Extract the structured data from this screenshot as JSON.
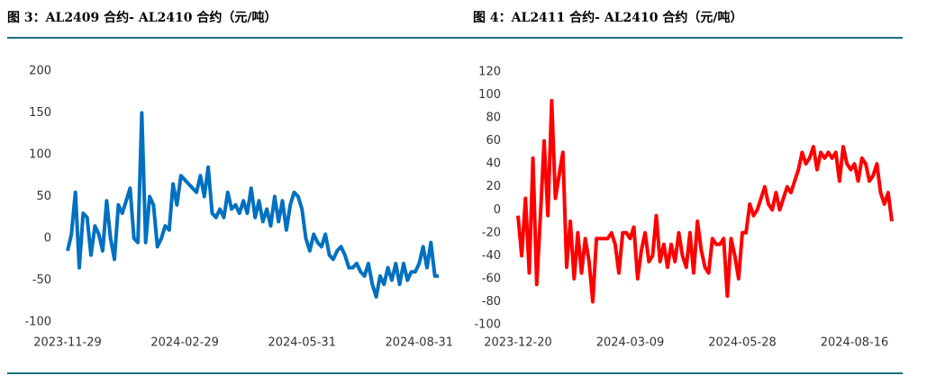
{
  "chart_data": [
    {
      "type": "line",
      "title": "图 3：AL2409 合约- AL2410 合约（元/吨）",
      "categories": [
        "2023-11-29",
        null,
        null,
        null,
        null,
        null,
        null,
        null,
        null,
        null,
        null,
        null,
        null,
        null,
        null,
        null,
        null,
        null,
        null,
        null,
        null,
        null,
        null,
        null,
        null,
        null,
        null,
        null,
        null,
        null,
        "2024-02-29",
        null,
        null,
        null,
        null,
        null,
        null,
        null,
        null,
        null,
        null,
        null,
        null,
        null,
        null,
        null,
        null,
        null,
        null,
        null,
        null,
        null,
        null,
        null,
        null,
        null,
        null,
        null,
        null,
        null,
        "2024-05-31",
        null,
        null,
        null,
        null,
        null,
        null,
        null,
        null,
        null,
        null,
        null,
        null,
        null,
        null,
        null,
        null,
        null,
        null,
        null,
        null,
        null,
        null,
        null,
        null,
        null,
        null,
        null,
        null,
        null,
        "2024-08-31",
        null,
        null,
        null,
        null,
        null
      ],
      "series": [
        {
          "name": "AL2409-AL2410",
          "color": "#0070c0",
          "values": [
            -15,
            5,
            55,
            -35,
            30,
            25,
            -20,
            15,
            5,
            -15,
            45,
            0,
            -25,
            40,
            30,
            45,
            60,
            0,
            -5,
            150,
            -5,
            50,
            40,
            -10,
            0,
            15,
            10,
            65,
            40,
            75,
            70,
            65,
            60,
            55,
            75,
            50,
            85,
            30,
            25,
            35,
            25,
            55,
            35,
            40,
            30,
            45,
            30,
            60,
            25,
            45,
            20,
            35,
            15,
            50,
            20,
            45,
            10,
            40,
            55,
            50,
            35,
            0,
            -15,
            5,
            -5,
            -10,
            5,
            -20,
            -25,
            -15,
            -10,
            -20,
            -35,
            -35,
            -30,
            -40,
            -45,
            -30,
            -55,
            -70,
            -45,
            -55,
            -35,
            -50,
            -30,
            -55,
            -30,
            -50,
            -40,
            -40,
            -30,
            -10,
            -35,
            -5,
            -45,
            -45
          ]
        }
      ],
      "ylim": [
        -100,
        200
      ],
      "yticks": [
        -100,
        -50,
        0,
        50,
        100,
        150,
        200
      ]
    },
    {
      "type": "line",
      "title": "图 4：AL2411 合约- AL2410 合约（元/吨）",
      "categories": [
        "2023-12-20",
        null,
        null,
        null,
        null,
        null,
        null,
        null,
        null,
        null,
        null,
        null,
        null,
        null,
        null,
        null,
        null,
        null,
        null,
        null,
        null,
        null,
        null,
        null,
        null,
        null,
        null,
        null,
        null,
        null,
        "2024-03-09",
        null,
        null,
        null,
        null,
        null,
        null,
        null,
        null,
        null,
        null,
        null,
        null,
        null,
        null,
        null,
        null,
        null,
        null,
        null,
        null,
        null,
        null,
        null,
        null,
        null,
        null,
        null,
        null,
        null,
        "2024-05-28",
        null,
        null,
        null,
        null,
        null,
        null,
        null,
        null,
        null,
        null,
        null,
        null,
        null,
        null,
        null,
        null,
        null,
        null,
        null,
        null,
        null,
        null,
        null,
        null,
        null,
        null,
        null,
        null,
        null,
        "2024-08-16",
        null,
        null,
        null,
        null,
        null,
        null,
        null,
        null,
        null,
        null
      ],
      "series": [
        {
          "name": "AL2411-AL2410",
          "color": "#ff0000",
          "values": [
            -5,
            -40,
            10,
            -55,
            45,
            -65,
            -5,
            60,
            -5,
            95,
            10,
            30,
            50,
            -50,
            -10,
            -60,
            -20,
            -55,
            -25,
            -45,
            -80,
            -25,
            -25,
            -25,
            -25,
            -20,
            -30,
            -55,
            -20,
            -20,
            -25,
            -15,
            -60,
            -35,
            -20,
            -45,
            -40,
            -5,
            -45,
            -30,
            -50,
            -30,
            -45,
            -20,
            -40,
            -50,
            -20,
            -55,
            -10,
            -35,
            -50,
            -55,
            -25,
            -30,
            -30,
            -25,
            -75,
            -25,
            -40,
            -60,
            -20,
            -20,
            5,
            -5,
            0,
            10,
            20,
            5,
            0,
            15,
            0,
            10,
            20,
            15,
            25,
            35,
            50,
            40,
            45,
            55,
            35,
            50,
            45,
            50,
            45,
            50,
            25,
            55,
            40,
            35,
            40,
            25,
            45,
            40,
            25,
            30,
            40,
            15,
            5,
            15,
            -10
          ]
        }
      ],
      "ylim": [
        -100,
        120
      ],
      "yticks": [
        -100,
        -80,
        -60,
        -40,
        -20,
        0,
        20,
        40,
        60,
        80,
        100,
        120
      ]
    }
  ]
}
